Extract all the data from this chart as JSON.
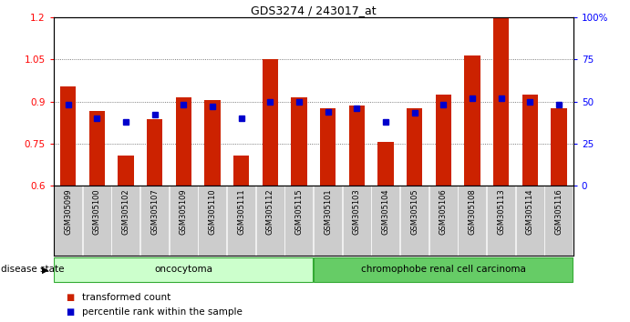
{
  "title": "GDS3274 / 243017_at",
  "samples": [
    "GSM305099",
    "GSM305100",
    "GSM305102",
    "GSM305107",
    "GSM305109",
    "GSM305110",
    "GSM305111",
    "GSM305112",
    "GSM305115",
    "GSM305101",
    "GSM305103",
    "GSM305104",
    "GSM305105",
    "GSM305106",
    "GSM305108",
    "GSM305113",
    "GSM305114",
    "GSM305116"
  ],
  "bar_values": [
    0.955,
    0.865,
    0.705,
    0.835,
    0.915,
    0.905,
    0.705,
    1.05,
    0.915,
    0.875,
    0.885,
    0.755,
    0.875,
    0.925,
    1.065,
    1.2,
    0.925,
    0.875
  ],
  "blue_dot_values": [
    48,
    40,
    38,
    42,
    48,
    47,
    40,
    50,
    50,
    44,
    46,
    38,
    43,
    48,
    52,
    52,
    50,
    48
  ],
  "groups": [
    {
      "label": "oncocytoma",
      "start": 0,
      "end": 8,
      "color": "#ccffcc"
    },
    {
      "label": "chromophobe renal cell carcinoma",
      "start": 9,
      "end": 17,
      "color": "#66cc66"
    }
  ],
  "ylim_left": [
    0.6,
    1.2
  ],
  "ylim_right": [
    0,
    100
  ],
  "yticks_left": [
    0.6,
    0.75,
    0.9,
    1.05,
    1.2
  ],
  "yticks_right": [
    0,
    25,
    50,
    75,
    100
  ],
  "ytick_labels_left": [
    "0.6",
    "0.75",
    "0.9",
    "1.05",
    "1.2"
  ],
  "ytick_labels_right": [
    "0",
    "25",
    "50",
    "75",
    "100%"
  ],
  "bar_color": "#cc2200",
  "dot_color": "#0000cc",
  "grid_color": "#555555",
  "background_color": "#ffffff",
  "label_bg_color": "#cccccc",
  "legend_items": [
    {
      "label": "transformed count",
      "color": "#cc2200"
    },
    {
      "label": "percentile rank within the sample",
      "color": "#0000cc"
    }
  ],
  "disease_state_label": "disease state",
  "group_border_color": "#33aa33"
}
